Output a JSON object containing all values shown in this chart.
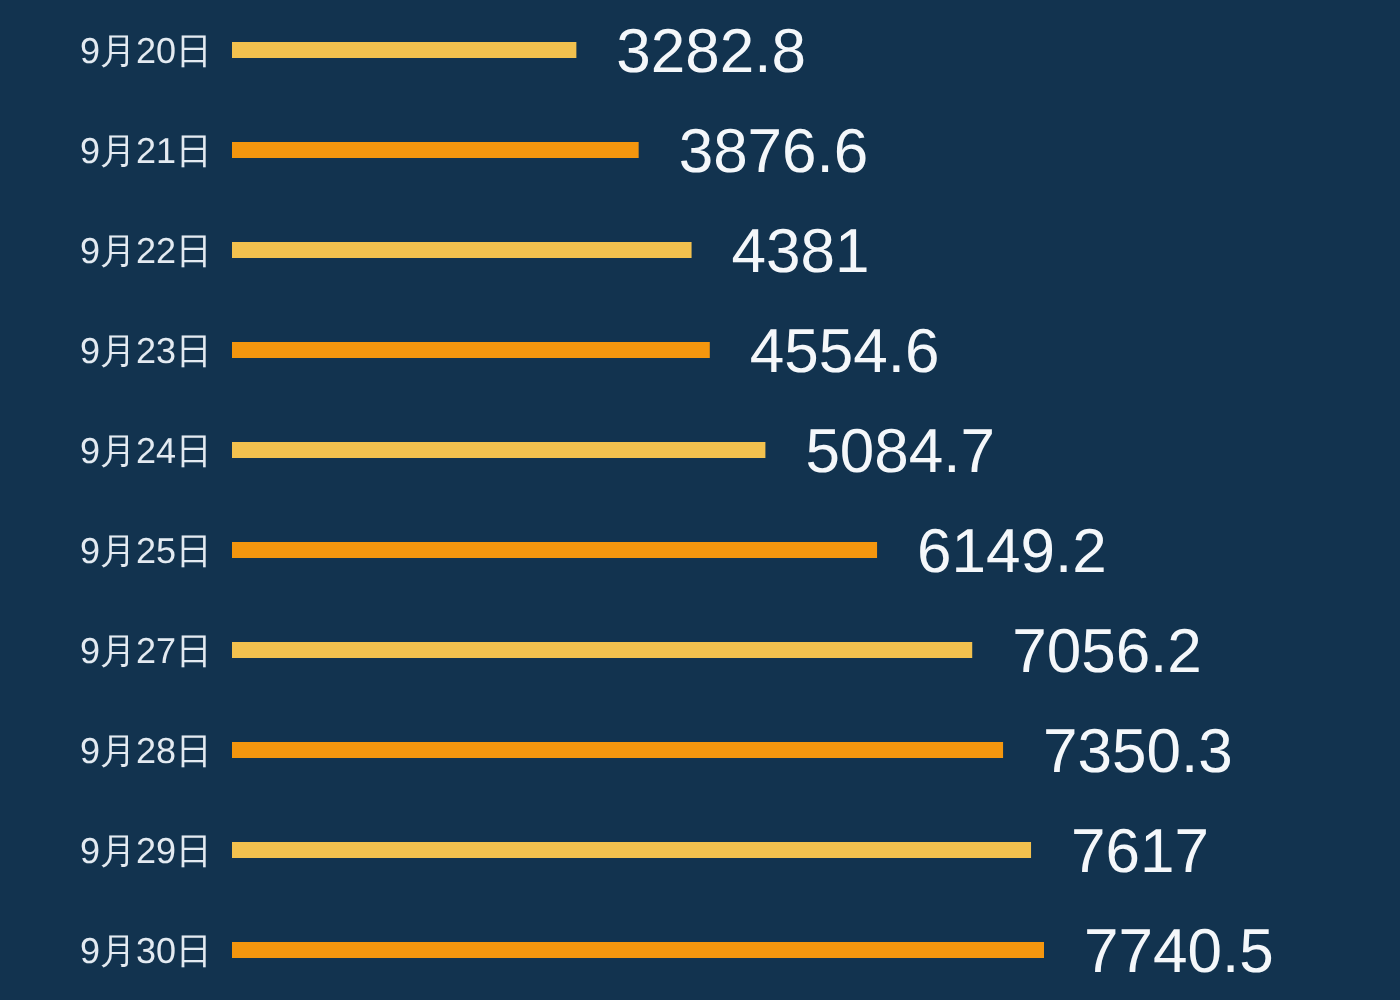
{
  "chart_data": {
    "type": "bar",
    "orientation": "horizontal",
    "categories": [
      "9月20日",
      "9月21日",
      "9月22日",
      "9月23日",
      "9月24日",
      "9月25日",
      "9月27日",
      "9月28日",
      "9月29日",
      "9月30日"
    ],
    "values": [
      3282.8,
      3876.6,
      4381,
      4554.6,
      5084.7,
      6149.2,
      7056.2,
      7350.3,
      7617,
      7740.5
    ],
    "colors": [
      "#f2c14e",
      "#f4960e",
      "#f2c14e",
      "#f4960e",
      "#f2c14e",
      "#f4960e",
      "#f2c14e",
      "#f4960e",
      "#f2c14e",
      "#f4960e"
    ],
    "data_labels": true,
    "tick_labels": "y"
  }
}
